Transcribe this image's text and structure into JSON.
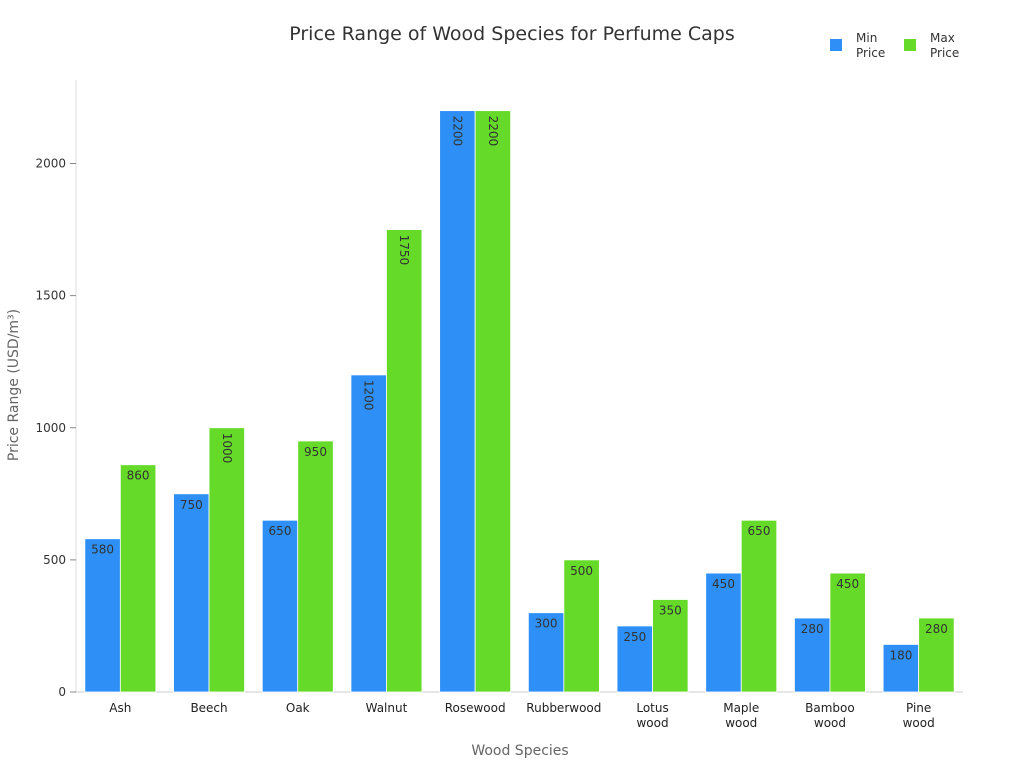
{
  "chart_data": {
    "type": "bar",
    "title": "Price Range of Wood Species for Perfume Caps",
    "xlabel": "Wood Species",
    "ylabel": "Price Range (USD/m³)",
    "categories": [
      "Ash",
      "Beech",
      "Oak",
      "Walnut",
      "Rosewood",
      "Rubberwood",
      "Lotus wood",
      "Maple wood",
      "Bamboo wood",
      "Pine wood"
    ],
    "series": [
      {
        "name": "Min Price",
        "color": "#2e90f7",
        "values": [
          580,
          750,
          650,
          1200,
          2200,
          300,
          250,
          450,
          280,
          180
        ]
      },
      {
        "name": "Max Price",
        "color": "#66da28",
        "values": [
          860,
          1000,
          950,
          1750,
          2200,
          500,
          350,
          650,
          450,
          280
        ]
      }
    ],
    "ylim": [
      0,
      2300
    ],
    "yticks": [
      0,
      500,
      1000,
      1500,
      2000
    ],
    "grid": false,
    "legend": "top-right",
    "data_labels": true
  }
}
